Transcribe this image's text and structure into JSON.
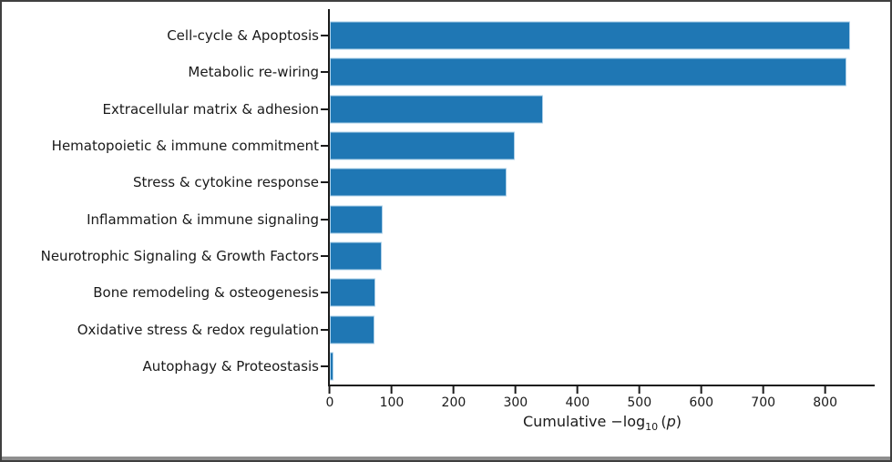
{
  "figure": {
    "background": "#ffffff",
    "border_color": "#3f3f3f",
    "bottom_strip_color": "#8e8e8e",
    "text_color": "#1a1a1a"
  },
  "chart_data": {
    "type": "bar",
    "orientation": "horizontal",
    "title": "",
    "categories": [
      "Cell-cycle & Apoptosis",
      "Metabolic re-wiring",
      "Extracellular matrix & adhesion",
      "Hematopoietic & immune commitment",
      "Stress & cytokine response",
      "Inflammation & immune signaling",
      "Neurotrophic Signaling & Growth Factors",
      "Bone remodeling & osteogenesis",
      "Oxidative stress & redox regulation",
      "Autophagy & Proteostasis"
    ],
    "values": [
      840,
      835,
      344,
      298,
      286,
      86,
      84,
      74,
      72,
      6
    ],
    "xlabel": "Cumulative −log10(p)",
    "xlabel_parts": {
      "prefix": "Cumulative −log",
      "subscript": "10",
      "open_paren": "(",
      "variable": "p",
      "close_paren": ")"
    },
    "ylabel": "",
    "xlim": [
      0,
      880
    ],
    "xticks": [
      0,
      100,
      200,
      300,
      400,
      500,
      600,
      700,
      800
    ],
    "bar_color": "#1f77b4",
    "bar_edge_color": "#aed0e8",
    "grid": false,
    "legend_position": "none"
  }
}
